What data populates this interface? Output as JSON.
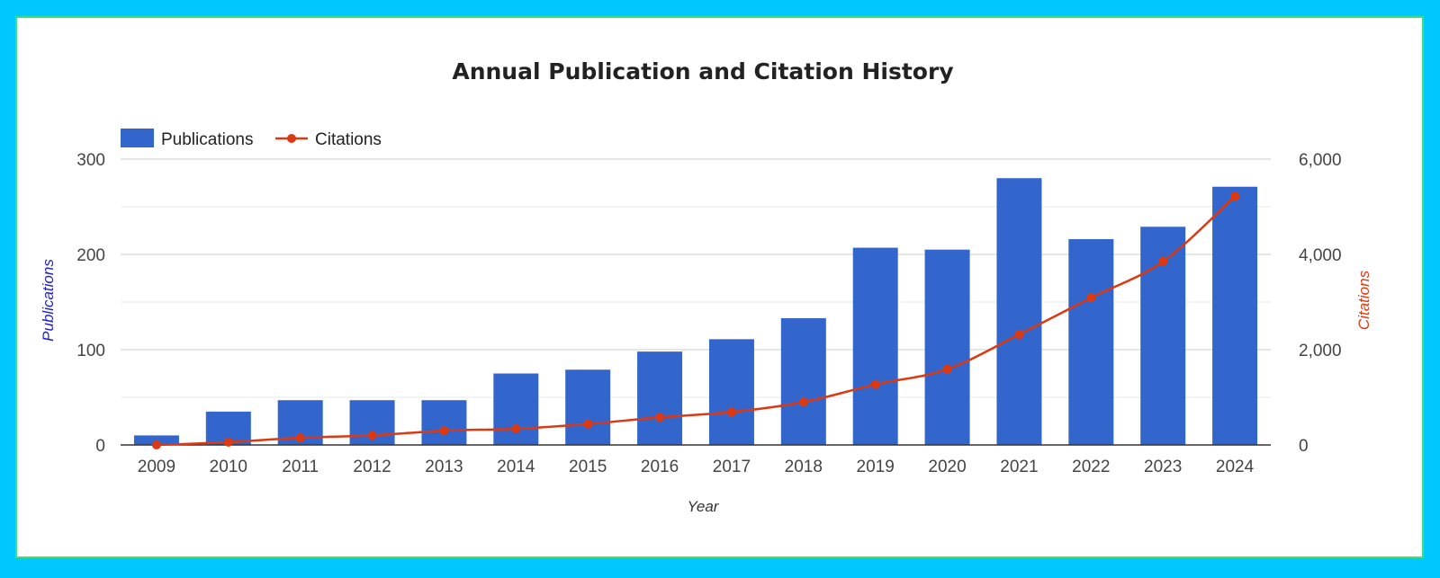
{
  "chart_data": {
    "type": "bar",
    "title": "Annual Publication and Citation History",
    "xlabel": "Year",
    "ylabel": "Publications",
    "y2label": "Citations",
    "categories": [
      "2009",
      "2010",
      "2011",
      "2012",
      "2013",
      "2014",
      "2015",
      "2016",
      "2017",
      "2018",
      "2019",
      "2020",
      "2021",
      "2022",
      "2023",
      "2024"
    ],
    "series": [
      {
        "name": "Publications",
        "type": "bar",
        "axis": "left",
        "color": "#3366cc",
        "values": [
          10,
          35,
          47,
          47,
          47,
          75,
          79,
          98,
          111,
          133,
          207,
          205,
          280,
          216,
          229,
          271
        ]
      },
      {
        "name": "Citations",
        "type": "line",
        "axis": "right",
        "color": "#dc3912",
        "values": [
          0,
          60,
          150,
          200,
          300,
          340,
          440,
          580,
          690,
          900,
          1270,
          1590,
          2320,
          3090,
          3850,
          5220
        ]
      }
    ],
    "ylim": [
      0,
      300
    ],
    "y2lim": [
      0,
      6000
    ],
    "yticks": [
      "0",
      "100",
      "200",
      "300"
    ],
    "y2ticks": [
      "0",
      "2,000",
      "4,000",
      "6,000"
    ],
    "legend_position": "top-left",
    "ylabel_color": "#2222cc",
    "y2label_color": "#dc3912",
    "grid": true
  }
}
